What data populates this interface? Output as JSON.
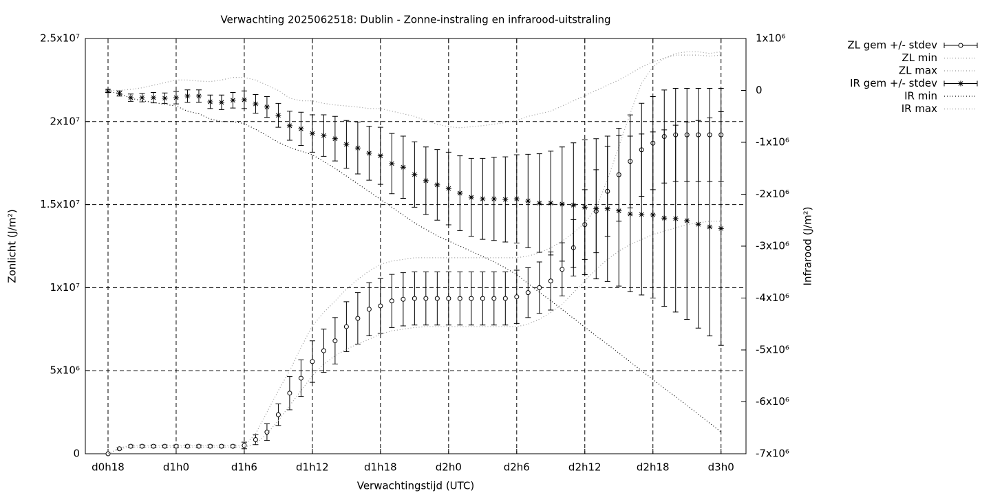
{
  "chart_data": {
    "type": "line",
    "title": "Verwachting 2025062518: Dublin - Zonne-instraling en infrarood-uitstraling",
    "xlabel": "Verwachtingstijd (UTC)",
    "ylabel": "Zonlicht (J/m²)",
    "y2label": "Infrarood (J/m²)",
    "grid": true,
    "legend": "outside-top-right",
    "x": [
      18,
      19,
      20,
      21,
      22,
      23,
      24,
      25,
      26,
      27,
      28,
      29,
      30,
      31,
      32,
      33,
      34,
      35,
      36,
      37,
      38,
      39,
      40,
      41,
      42,
      43,
      44,
      45,
      46,
      47,
      48,
      49,
      50,
      51,
      52,
      53,
      54,
      55,
      56,
      57,
      58,
      59,
      60,
      61,
      62,
      63,
      64,
      65,
      66,
      67,
      68,
      69,
      70,
      71,
      72
    ],
    "xlim": [
      16,
      74.2
    ],
    "xticks": [
      {
        "value": 18,
        "label": "d0h18"
      },
      {
        "value": 24,
        "label": "d1h0"
      },
      {
        "value": 30,
        "label": "d1h6"
      },
      {
        "value": 36,
        "label": "d1h12"
      },
      {
        "value": 42,
        "label": "d1h18"
      },
      {
        "value": 48,
        "label": "d2h0"
      },
      {
        "value": 54,
        "label": "d2h6"
      },
      {
        "value": 60,
        "label": "d2h12"
      },
      {
        "value": 66,
        "label": "d2h18"
      },
      {
        "value": 72,
        "label": "d3h0"
      }
    ],
    "ylim": [
      0,
      25000000.0
    ],
    "yticks": [
      0,
      {
        "value": 5000000.0,
        "label": "5x10⁶"
      },
      {
        "value": 10000000.0,
        "label": "1x10⁷"
      },
      {
        "value": 15000000.0,
        "label": "1.5x10⁷"
      },
      {
        "value": 20000000.0,
        "label": "2x10⁷"
      },
      {
        "value": 25000000.0,
        "label": "2.5x10⁷"
      }
    ],
    "y2lim": [
      -7000000.0,
      1000000.0
    ],
    "y2ticks": [
      {
        "value": 1000000.0,
        "label": "1x10⁶"
      },
      0,
      {
        "value": -1000000.0,
        "label": "-1x10⁶"
      },
      {
        "value": -2000000.0,
        "label": "-2x10⁶"
      },
      {
        "value": -3000000.0,
        "label": "-3x10⁶"
      },
      {
        "value": -4000000.0,
        "label": "-4x10⁶"
      },
      {
        "value": -5000000.0,
        "label": "-5x10⁶"
      },
      {
        "value": -6000000.0,
        "label": "-6x10⁶"
      },
      {
        "value": -7000000.0,
        "label": "-7x10⁶"
      }
    ],
    "series": [
      {
        "name": "ZL gem +/- stdev",
        "color": "#000000",
        "marker": "circle",
        "values": [
          0,
          300000.0,
          450000.0,
          450000.0,
          450000.0,
          450000.0,
          450000.0,
          450000.0,
          450000.0,
          450000.0,
          450000.0,
          450000.0,
          500000.0,
          850000.0,
          1300000.0,
          2350000.0,
          3650000.0,
          4550000.0,
          5550000.0,
          6200000.0,
          6800000.0,
          7650000.0,
          8150000.0,
          8700000.0,
          8900000.0,
          9200000.0,
          9300000.0,
          9350000.0,
          9350000.0,
          9350000.0,
          9350000.0,
          9350000.0,
          9350000.0,
          9350000.0,
          9350000.0,
          9350000.0,
          9450000.0,
          9700000.0,
          10000000.0,
          10400000.0,
          11100000.0,
          12400000.0,
          13800000.0,
          14600000.0,
          15800000.0,
          16800000.0,
          17600000.0,
          18300000.0,
          18700000.0,
          19100000.0,
          19200000.0,
          19200000.0,
          19200000.0,
          19200000.0,
          19200000.0
        ],
        "errors": [
          0,
          50000.0,
          80000.0,
          80000.0,
          80000.0,
          80000.0,
          80000.0,
          80000.0,
          80000.0,
          80000.0,
          80000.0,
          80000.0,
          200000.0,
          300000.0,
          500000.0,
          650000.0,
          1000000.0,
          1100000.0,
          1250000.0,
          1300000.0,
          1400000.0,
          1500000.0,
          1550000.0,
          1600000.0,
          1650000.0,
          1600000.0,
          1600000.0,
          1600000.0,
          1600000.0,
          1600000.0,
          1600000.0,
          1600000.0,
          1600000.0,
          1600000.0,
          1600000.0,
          1600000.0,
          1600000.0,
          1500000.0,
          1550000.0,
          1750000.0,
          1600000.0,
          1700000.0,
          2100000.0,
          2500000.0,
          2700000.0,
          2800000.0,
          2800000.0,
          2800000.0,
          2800000.0,
          2800000.0,
          2800000.0,
          2800000.0,
          2800000.0,
          2800000.0,
          2800000.0
        ]
      },
      {
        "name": "ZL min",
        "color": "#999999",
        "values": [
          0,
          300000.0,
          400000.0,
          400000.0,
          400000.0,
          400000.0,
          400000.0,
          400000.0,
          400000.0,
          400000.0,
          400000.0,
          400000.0,
          400000.0,
          600000.0,
          1200000.0,
          2000000.0,
          2900000.0,
          3800000.0,
          4700000.0,
          5400000.0,
          5900000.0,
          6300000.0,
          6600000.0,
          6900000.0,
          7200000.0,
          7400000.0,
          7500000.0,
          7600000.0,
          7650000.0,
          7650000.0,
          7650000.0,
          7650000.0,
          7650000.0,
          7650000.0,
          7650000.0,
          7650000.0,
          7650000.0,
          7800000.0,
          8100000.0,
          8500000.0,
          9000000.0,
          9700000.0,
          10400000.0,
          11100000.0,
          11700000.0,
          12200000.0,
          12600000.0,
          12900000.0,
          13200000.0,
          13400000.0,
          13600000.0,
          13800000.0,
          13900000.0,
          14000000.0,
          14000000.0
        ]
      },
      {
        "name": "ZL max",
        "color": "#999999",
        "values": [
          0,
          350000.0,
          500000.0,
          500000.0,
          500000.0,
          500000.0,
          500000.0,
          500000.0,
          500000.0,
          500000.0,
          500000.0,
          500000.0,
          500000.0,
          1200000.0,
          2500000.0,
          3800000.0,
          5000000.0,
          6400000.0,
          7700000.0,
          8500000.0,
          9200000.0,
          9900000.0,
          10500000.0,
          11000000.0,
          11400000.0,
          11600000.0,
          11700000.0,
          11800000.0,
          11800000.0,
          11800000.0,
          11800000.0,
          11800000.0,
          11800000.0,
          11800000.0,
          11800000.0,
          11800000.0,
          11800000.0,
          11900000.0,
          12100000.0,
          12400000.0,
          12800000.0,
          13300000.0,
          13900000.0,
          14800000.0,
          16500000.0,
          18500000.0,
          20500000.0,
          22300000.0,
          23300000.0,
          23800000.0,
          24100000.0,
          24200000.0,
          24200000.0,
          24100000.0,
          24200000.0
        ]
      },
      {
        "name": "IR gem +/- stdev",
        "color": "#000000",
        "marker": "star",
        "axis": "y2",
        "values": [
          -10000.0,
          -60000.0,
          -140000.0,
          -140000.0,
          -140000.0,
          -150000.0,
          -140000.0,
          -110000.0,
          -110000.0,
          -220000.0,
          -230000.0,
          -190000.0,
          -180000.0,
          -260000.0,
          -320000.0,
          -480000.0,
          -680000.0,
          -740000.0,
          -830000.0,
          -870000.0,
          -930000.0,
          -1040000.0,
          -1110000.0,
          -1210000.0,
          -1260000.0,
          -1410000.0,
          -1480000.0,
          -1620000.0,
          -1740000.0,
          -1820000.0,
          -1890000.0,
          -1980000.0,
          -2060000.0,
          -2090000.0,
          -2090000.0,
          -2100000.0,
          -2090000.0,
          -2130000.0,
          -2170000.0,
          -2170000.0,
          -2190000.0,
          -2210000.0,
          -2250000.0,
          -2280000.0,
          -2280000.0,
          -2320000.0,
          -2380000.0,
          -2390000.0,
          -2400000.0,
          -2460000.0,
          -2470000.0,
          -2510000.0,
          -2580000.0,
          -2630000.0,
          -2660000.0
        ],
        "errors": [
          30000.0,
          50000.0,
          70000.0,
          80000.0,
          100000.0,
          100000.0,
          120000.0,
          120000.0,
          120000.0,
          130000.0,
          140000.0,
          150000.0,
          170000.0,
          180000.0,
          200000.0,
          230000.0,
          280000.0,
          320000.0,
          360000.0,
          400000.0,
          430000.0,
          460000.0,
          500000.0,
          520000.0,
          550000.0,
          580000.0,
          600000.0,
          630000.0,
          650000.0,
          680000.0,
          700000.0,
          720000.0,
          750000.0,
          780000.0,
          800000.0,
          820000.0,
          850000.0,
          900000.0,
          950000.0,
          1000000.0,
          1100000.0,
          1200000.0,
          1300000.0,
          1350000.0,
          1400000.0,
          1450000.0,
          1500000.0,
          1550000.0,
          1600000.0,
          1700000.0,
          1800000.0,
          1900000.0,
          2000000.0,
          2100000.0,
          2250000.0
        ]
      },
      {
        "name": "IR min",
        "color": "#000000",
        "axis": "y2",
        "values": [
          -20000.0,
          -60000.0,
          -150000.0,
          -200000.0,
          -230000.0,
          -270000.0,
          -300000.0,
          -400000.0,
          -450000.0,
          -550000.0,
          -600000.0,
          -600000.0,
          -640000.0,
          -750000.0,
          -870000.0,
          -1000000.0,
          -1100000.0,
          -1170000.0,
          -1240000.0,
          -1370000.0,
          -1500000.0,
          -1650000.0,
          -1800000.0,
          -1950000.0,
          -2100000.0,
          -2250000.0,
          -2400000.0,
          -2550000.0,
          -2680000.0,
          -2800000.0,
          -2900000.0,
          -3000000.0,
          -3100000.0,
          -3200000.0,
          -3300000.0,
          -3420000.0,
          -3550000.0,
          -3720000.0,
          -3890000.0,
          -4050000.0,
          -4220000.0,
          -4390000.0,
          -4560000.0,
          -4730000.0,
          -4890000.0,
          -5060000.0,
          -5230000.0,
          -5400000.0,
          -5570000.0,
          -5740000.0,
          -5900000.0,
          -6070000.0,
          -6240000.0,
          -6410000.0,
          -6580000.0
        ]
      },
      {
        "name": "IR max",
        "color": "#999999",
        "axis": "y2",
        "values": [
          0,
          0,
          20000.0,
          50000.0,
          100000.0,
          150000.0,
          200000.0,
          200000.0,
          180000.0,
          170000.0,
          200000.0,
          250000.0,
          250000.0,
          200000.0,
          100000.0,
          0,
          -150000.0,
          -200000.0,
          -200000.0,
          -250000.0,
          -280000.0,
          -300000.0,
          -320000.0,
          -350000.0,
          -350000.0,
          -400000.0,
          -450000.0,
          -500000.0,
          -580000.0,
          -650000.0,
          -700000.0,
          -720000.0,
          -700000.0,
          -680000.0,
          -650000.0,
          -620000.0,
          -580000.0,
          -500000.0,
          -450000.0,
          -400000.0,
          -300000.0,
          -200000.0,
          -100000.0,
          0,
          100000.0,
          200000.0,
          320000.0,
          450000.0,
          550000.0,
          620000.0,
          680000.0,
          680000.0,
          680000.0,
          660000.0,
          680000.0
        ]
      }
    ]
  }
}
